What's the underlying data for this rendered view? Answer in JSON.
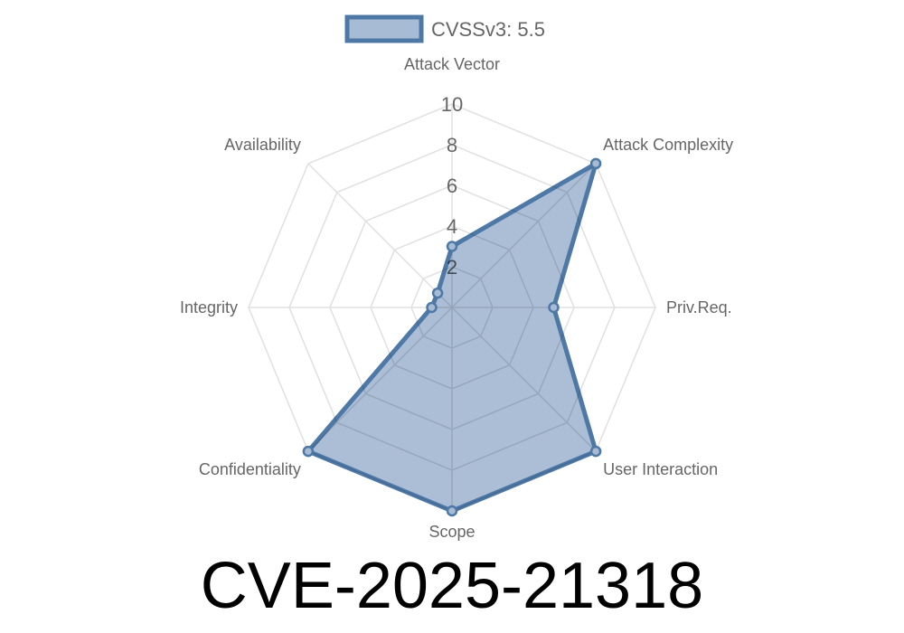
{
  "chart_data": {
    "type": "radar",
    "title": "CVE-2025-21318",
    "axes": [
      "Attack Vector",
      "Attack Complexity",
      "Priv.Req.",
      "User Interaction",
      "Scope",
      "Confidentiality",
      "Integrity",
      "Availability"
    ],
    "series": [
      {
        "name": "CVSSv3: 5.5",
        "values": [
          3,
          10,
          5,
          10,
          10,
          10,
          1,
          1
        ]
      }
    ],
    "rlim": [
      0,
      10
    ],
    "ticks": [
      "2",
      "4",
      "6",
      "8",
      "10"
    ],
    "legend": "top",
    "grid": true,
    "colors": {
      "line": "#4e79a7",
      "fill": "#a7bbd4",
      "grid": "#e0e0e0"
    }
  }
}
